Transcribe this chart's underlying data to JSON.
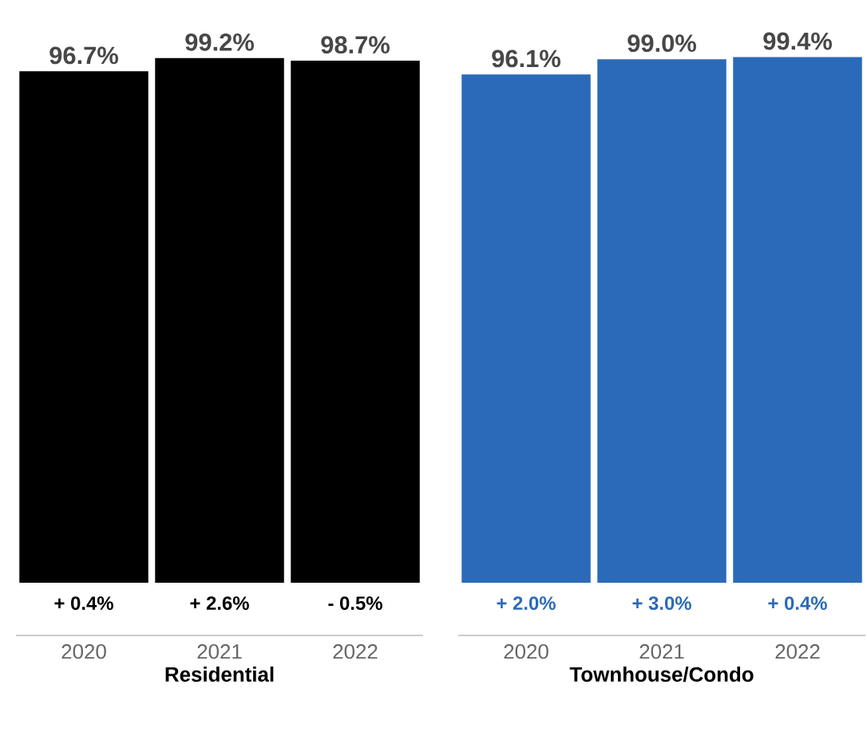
{
  "chart_data": [
    {
      "type": "bar",
      "categories": [
        "2020",
        "2021",
        "2022"
      ],
      "values": [
        96.7,
        99.2,
        98.7
      ],
      "color": "#000000",
      "value_labels": [
        "96.7%",
        "99.2%",
        "98.7%"
      ],
      "xlabel": "Residential",
      "annotations": [
        {
          "text": "+ 0.4%",
          "x": "2020",
          "y": 0
        },
        {
          "text": "+ 2.6%",
          "x": "2021",
          "y": 0
        },
        {
          "text": "- 0.5%",
          "x": "2022",
          "y": 0
        }
      ]
    },
    {
      "type": "bar",
      "categories": [
        "2020",
        "2021",
        "2022"
      ],
      "values": [
        96.1,
        99.0,
        99.4
      ],
      "color": "#2a6ab8",
      "value_labels": [
        "96.1%",
        "99.0%",
        "99.4%"
      ],
      "xlabel": "Townhouse/Condo",
      "annotations": [
        {
          "text": "+ 2.0%",
          "x": "2020",
          "y": 0
        },
        {
          "text": "+ 3.0%",
          "x": "2021",
          "y": 0
        },
        {
          "text": "+ 0.4%",
          "x": "2022",
          "y": 0
        }
      ]
    }
  ]
}
